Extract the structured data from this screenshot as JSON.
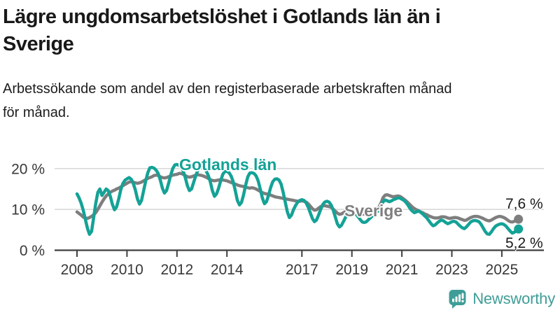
{
  "header": {
    "title": "Lägre ungdomsarbetslöshet i Gotlands län än i Sverige",
    "title_lines": [
      "Lägre ungdomsarbetslöshet i Gotlands län än i",
      "Sverige"
    ],
    "subtitle": "Arbetssökande som andel av den registerbaserade arbetskraften månad för månad.",
    "subtitle_lines": [
      "Arbetssökande som andel av den registerbaserade arbetskraften månad",
      "för månad."
    ]
  },
  "chart_data": {
    "type": "line",
    "unit": "%",
    "frequency": "monthly",
    "start_year": 2008,
    "end_point": "2025-09",
    "x_ticks": [
      2008,
      2010,
      2012,
      2014,
      2017,
      2019,
      2021,
      2023,
      2025
    ],
    "y_ticks": [
      {
        "value": 0,
        "label": "0 %"
      },
      {
        "value": 10,
        "label": "10 %"
      },
      {
        "value": 20,
        "label": "20 %"
      }
    ],
    "xlim": [
      2007.1,
      2026.7
    ],
    "ylim": [
      0,
      24.4
    ],
    "grid": "horizontal",
    "legend_position": "inline-labels",
    "series": [
      {
        "name": "Sverige",
        "color": "#7e7e7e",
        "end_value": 7.6,
        "end_label": "7,6 %",
        "values": [
          9.4,
          9.0,
          8.6,
          8.1,
          7.9,
          7.8,
          8.0,
          8.3,
          8.7,
          9.2,
          10.0,
          10.9,
          11.8,
          12.6,
          13.3,
          13.8,
          14.2,
          14.5,
          14.7,
          15.0,
          15.2,
          15.5,
          15.8,
          16.1,
          16.4,
          16.7,
          16.8,
          16.7,
          16.5,
          16.4,
          16.5,
          16.7,
          17.0,
          17.3,
          17.6,
          17.8,
          18.0,
          18.3,
          18.4,
          18.3,
          18.0,
          17.8,
          17.7,
          17.8,
          18.0,
          18.2,
          18.4,
          18.5,
          18.6,
          18.8,
          18.8,
          18.6,
          18.3,
          18.0,
          17.9,
          18.0,
          18.2,
          18.4,
          18.5,
          18.4,
          18.3,
          18.1,
          17.9,
          17.6,
          17.3,
          17.1,
          17.0,
          17.1,
          17.2,
          17.3,
          17.2,
          17.1,
          17.0,
          16.8,
          16.6,
          16.4,
          16.2,
          16.0,
          15.8,
          15.7,
          15.6,
          15.5,
          15.3,
          15.2,
          15.3,
          15.2,
          15.0,
          14.7,
          14.4,
          14.1,
          13.9,
          13.8,
          13.7,
          13.5,
          13.3,
          13.1,
          13.0,
          12.9,
          12.8,
          12.7,
          12.6,
          12.5,
          12.4,
          12.3,
          12.2,
          12.1,
          12.0,
          12.0,
          12.1,
          12.0,
          11.8,
          11.4,
          10.8,
          10.2,
          9.8,
          9.9,
          10.3,
          10.7,
          10.9,
          10.9,
          10.8,
          10.7,
          10.5,
          10.1,
          9.6,
          9.1,
          8.8,
          8.9,
          9.2,
          9.5,
          9.6,
          9.5,
          9.4,
          9.3,
          9.1,
          8.9,
          8.8,
          8.8,
          8.9,
          9.1,
          9.3,
          9.5,
          9.7,
          9.9,
          10.2,
          10.6,
          11.6,
          12.9,
          13.5,
          13.6,
          13.4,
          13.2,
          13.1,
          13.2,
          13.3,
          13.2,
          12.9,
          12.5,
          12.1,
          11.6,
          11.1,
          10.6,
          10.2,
          9.9,
          9.7,
          9.4,
          9.2,
          8.9,
          8.7,
          8.4,
          8.2,
          8.0,
          7.9,
          7.9,
          8.0,
          8.2,
          8.2,
          8.1,
          7.9,
          7.8,
          7.9,
          8.0,
          8.0,
          7.9,
          7.7,
          7.5,
          7.3,
          7.4,
          7.7,
          8.0,
          8.2,
          8.3,
          8.3,
          8.2,
          8.0,
          7.8,
          7.5,
          7.3,
          7.2,
          7.4,
          7.7,
          8.0,
          8.2,
          8.3,
          8.2,
          8.0,
          7.7,
          7.3,
          7.0,
          6.9,
          7.1,
          7.4,
          7.6
        ]
      },
      {
        "name": "Gotlands län",
        "color": "#14a296",
        "end_value": 5.2,
        "end_label": "5,2 %",
        "values": [
          13.8,
          12.8,
          11.5,
          9.8,
          7.6,
          5.4,
          3.9,
          4.6,
          8.0,
          11.5,
          14.2,
          15.0,
          13.4,
          14.2,
          15.0,
          14.6,
          13.2,
          11.2,
          9.9,
          10.6,
          12.5,
          14.8,
          16.3,
          17.1,
          17.5,
          17.8,
          17.4,
          16.4,
          14.8,
          12.6,
          11.3,
          12.2,
          14.6,
          17.0,
          19.0,
          20.2,
          20.3,
          20.1,
          19.6,
          18.8,
          17.2,
          15.2,
          14.0,
          14.6,
          16.4,
          18.4,
          20.0,
          20.9,
          21.0,
          20.8,
          20.4,
          19.4,
          17.8,
          15.8,
          14.6,
          15.0,
          16.6,
          18.2,
          19.6,
          20.2,
          20.2,
          19.9,
          19.4,
          18.4,
          16.8,
          14.6,
          13.2,
          13.8,
          15.2,
          17.0,
          18.6,
          19.3,
          19.3,
          19.0,
          18.2,
          16.8,
          14.6,
          12.2,
          11.1,
          11.7,
          13.6,
          16.0,
          18.0,
          18.9,
          19.0,
          18.8,
          18.2,
          17.0,
          15.0,
          12.8,
          11.4,
          11.9,
          13.5,
          15.4,
          16.8,
          17.4,
          17.5,
          17.2,
          16.2,
          14.2,
          11.8,
          9.4,
          8.0,
          8.6,
          10.0,
          11.0,
          11.8,
          12.2,
          12.4,
          12.2,
          11.6,
          10.6,
          9.2,
          7.8,
          7.0,
          7.4,
          8.6,
          10.0,
          11.2,
          11.8,
          12.0,
          11.8,
          11.1,
          9.9,
          8.2,
          6.5,
          5.7,
          6.1,
          7.1,
          8.1,
          8.9,
          9.2,
          9.3,
          9.2,
          8.8,
          8.2,
          7.5,
          6.9,
          6.8,
          7.0,
          7.5,
          8.0,
          8.5,
          8.9,
          9.4,
          9.8,
          10.8,
          11.9,
          12.3,
          12.1,
          11.9,
          12.1,
          12.4,
          12.6,
          12.8,
          12.8,
          12.5,
          12.2,
          11.7,
          11.0,
          10.2,
          9.6,
          9.2,
          9.4,
          9.6,
          9.3,
          8.9,
          8.4,
          7.9,
          7.2,
          6.5,
          6.0,
          6.2,
          6.7,
          7.1,
          7.4,
          7.2,
          6.8,
          6.5,
          6.7,
          7.0,
          7.1,
          6.9,
          6.4,
          5.9,
          5.5,
          5.3,
          5.7,
          6.3,
          6.9,
          7.2,
          7.3,
          7.2,
          7.0,
          6.4,
          5.5,
          4.6,
          4.0,
          3.9,
          4.5,
          5.3,
          5.9,
          6.2,
          6.4,
          6.5,
          6.3,
          5.9,
          5.3,
          4.7,
          4.2,
          4.4,
          4.9,
          5.2
        ]
      }
    ]
  },
  "branding": {
    "logo_text": "Newsworthy",
    "logo_icon": "bar-chart-speech-bubble-icon"
  },
  "colors": {
    "gotland_line": "#14a296",
    "sverige_line": "#7e7e7e",
    "gridline": "#d9d9d9",
    "axis": "#3f3f3f",
    "tick_text": "#383838",
    "logo_teal": "#3f9d97"
  }
}
